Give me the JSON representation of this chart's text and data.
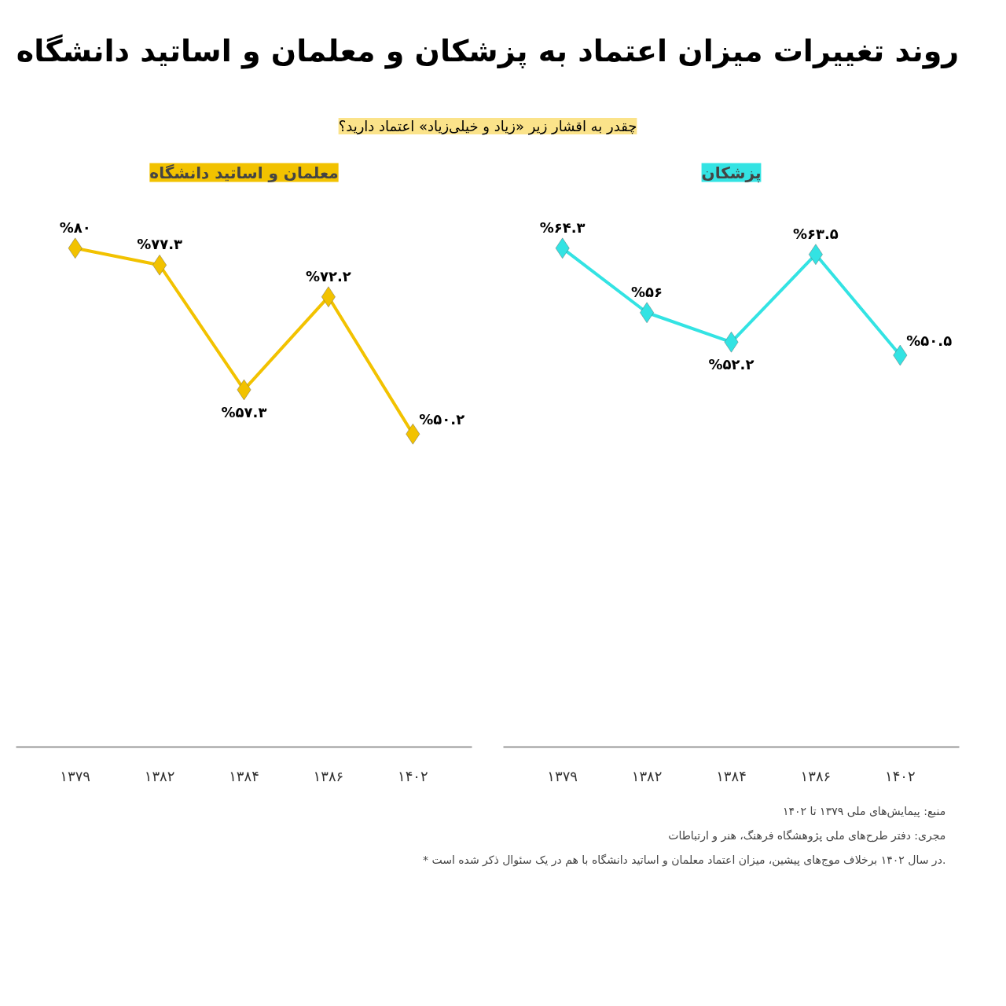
{
  "chart_data": [
    {
      "type": "other",
      "title": "روند تغییرات میزان اعتماد به پزشکان و معلمان و اساتید دانشگاه",
      "subtitle": "چقدر به اقشار زیر «زیاد و خیلی‌زیاد» اعتماد دارید؟"
    },
    {
      "type": "line",
      "title": "معلمان و اساتید دانشگاه",
      "categories": [
        "۱۳۷۹",
        "۱۳۸۲",
        "۱۳۸۴",
        "۱۳۸۶",
        "۱۴۰۲"
      ],
      "tick_labels": "x",
      "grid": false,
      "marker": "diamond",
      "line_style": "solid",
      "series": [
        {
          "color": "#f2c200",
          "values": [
            80,
            77.3,
            57.3,
            72.2,
            50.2
          ],
          "value_labels": [
            "%۸۰",
            "%۷۷.۳",
            "%۵۷.۳",
            "%۷۲.۲",
            "%۵۰.۲"
          ]
        }
      ]
    },
    {
      "type": "line",
      "title": "پزشکان",
      "categories": [
        "۱۳۷۹",
        "۱۳۸۲",
        "۱۳۸۴",
        "۱۳۸۶",
        "۱۴۰۲"
      ],
      "tick_labels": "x",
      "grid": false,
      "marker": "diamond",
      "line_style": "solid",
      "series": [
        {
          "color": "#33e3e3",
          "values": [
            64.3,
            56,
            52.2,
            63.5,
            50.5
          ],
          "value_labels": [
            "%۶۴.۳",
            "%۵۶",
            "%۵۲.۲",
            "%۶۳.۵",
            "%۵۰.۵"
          ]
        }
      ]
    },
    {
      "type": "other",
      "annotations": [
        "منبع: پیمایش‌های ملی ۱۳۷۹ تا ۱۴۰۲",
        "مجری: دفتر طرح‌های ملی پژوهشگاه فرهنگ، هنر و ارتباطات",
        "* در سال ۱۴۰۲ برخلاف موج‌های پیشین، میزان اعتماد معلمان و اساتید دانشگاه با هم در یک سئوال ذکر شده است."
      ]
    }
  ]
}
